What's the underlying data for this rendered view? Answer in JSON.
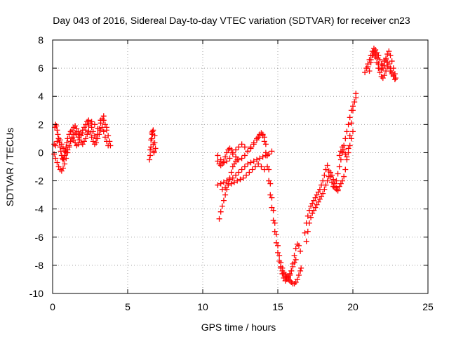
{
  "chart_data": {
    "type": "scatter",
    "title": "Day 043 of 2016, Sidereal Day-to-day VTEC variation (SDTVAR) for receiver cn23",
    "xlabel": "GPS time / hours",
    "ylabel": "SDTVAR / TECUs",
    "xlim": [
      0,
      25
    ],
    "ylim": [
      -10,
      8
    ],
    "xticks": [
      0,
      5,
      10,
      15,
      20,
      25
    ],
    "yticks": [
      -10,
      -8,
      -6,
      -4,
      -2,
      0,
      2,
      4,
      6,
      8
    ],
    "grid": true,
    "legend": "none",
    "marker": "plus",
    "color": "#ff0000",
    "series": [
      {
        "name": "",
        "x": [
          0.1,
          0.15,
          0.2,
          0.25,
          0.3,
          0.35,
          0.4,
          0.45,
          0.5,
          0.55,
          0.6,
          0.65,
          0.7,
          0.75,
          0.8,
          0.85,
          0.9,
          0.95,
          1.0,
          1.1,
          1.2,
          1.3,
          1.4,
          1.5,
          1.6,
          1.7,
          1.8,
          1.9,
          2.0,
          2.1,
          2.2,
          2.3,
          2.4,
          2.5,
          2.6,
          2.7,
          2.8,
          2.9,
          3.0,
          3.1,
          3.2,
          3.3,
          3.4,
          3.5,
          3.6,
          3.7,
          3.8,
          3.85,
          0.1,
          0.2,
          0.3,
          0.4,
          0.5,
          0.6,
          0.7,
          0.8,
          0.9,
          1.0,
          1.1,
          1.2,
          1.3,
          1.4,
          1.5,
          1.6,
          1.7,
          1.8,
          1.9,
          2.0,
          2.1,
          2.2,
          2.3,
          2.4,
          2.5,
          2.6,
          2.7,
          2.8,
          2.9,
          3.0,
          3.1,
          3.2,
          3.3,
          3.4,
          3.5,
          3.6,
          3.7,
          0.2,
          0.3,
          0.4,
          0.5,
          0.6,
          0.7,
          0.8,
          0.9,
          1.0,
          1.1,
          1.2,
          1.3,
          1.4,
          1.5,
          1.6,
          1.7,
          1.8,
          1.9,
          2.0,
          2.2,
          2.4,
          2.6,
          2.8,
          3.0,
          3.2,
          3.4,
          3.6,
          6.45,
          6.5,
          6.55,
          6.6,
          6.65,
          6.7,
          6.75,
          6.8,
          6.85,
          6.5,
          6.6,
          6.7,
          6.8,
          6.55,
          6.65,
          6.75,
          11.0,
          11.1,
          11.2,
          11.3,
          11.4,
          11.5,
          11.6,
          11.7,
          11.8,
          11.9,
          12.0,
          12.2,
          12.4,
          12.6,
          12.8,
          13.0,
          13.2,
          13.4,
          13.6,
          13.8,
          14.0,
          14.1,
          14.2,
          14.3,
          14.4,
          14.5,
          14.6,
          14.7,
          14.8,
          14.9,
          15.0,
          15.1,
          15.2,
          15.3,
          15.4,
          15.5,
          15.6,
          15.7,
          15.8,
          15.9,
          16.0,
          16.1,
          16.2,
          16.3,
          16.4,
          16.5,
          11.0,
          11.2,
          11.4,
          11.6,
          11.8,
          12.0,
          12.2,
          12.4,
          12.6,
          12.8,
          13.0,
          13.2,
          13.4,
          13.6,
          13.7,
          13.8,
          13.9,
          14.0,
          14.1,
          14.2,
          14.3,
          14.4,
          14.5,
          14.6,
          14.7,
          14.8,
          14.9,
          15.0,
          15.1,
          15.2,
          15.3,
          15.4,
          15.5,
          15.6,
          15.7,
          15.8,
          15.9,
          16.0,
          16.1,
          16.2,
          11.0,
          11.2,
          11.4,
          11.6,
          11.8,
          12.0,
          12.2,
          12.4,
          12.6,
          12.8,
          13.0,
          13.2,
          13.4,
          13.6,
          13.8,
          14.0,
          14.2,
          14.4,
          14.6,
          11.1,
          11.2,
          11.3,
          11.4,
          11.5,
          11.6,
          11.7,
          11.8,
          11.9,
          12.0,
          12.1,
          12.2,
          12.3,
          11.3,
          11.5,
          11.7,
          11.9,
          12.1,
          12.3,
          12.5,
          12.7,
          12.9,
          13.1,
          13.3,
          13.5,
          13.7,
          13.9,
          14.1,
          15.2,
          15.3,
          15.4,
          15.5,
          15.6,
          15.7,
          15.8,
          15.9,
          16.0,
          16.1,
          16.2,
          16.3,
          16.4,
          16.5,
          16.55,
          16.8,
          16.9,
          17.0,
          17.1,
          17.2,
          17.3,
          17.4,
          17.5,
          17.6,
          17.7,
          17.8,
          17.9,
          18.0,
          18.1,
          18.2,
          18.3,
          18.4,
          18.5,
          18.6,
          18.7,
          18.8,
          18.9,
          19.0,
          19.1,
          19.2,
          19.3,
          19.4,
          19.5,
          19.6,
          19.7,
          19.8,
          19.9,
          20.0,
          20.1,
          20.2,
          16.9,
          17.0,
          17.1,
          17.2,
          17.3,
          17.4,
          17.5,
          17.6,
          17.7,
          17.8,
          17.9,
          18.0,
          18.1,
          18.2,
          18.3,
          18.4,
          18.5,
          18.6,
          18.7,
          18.8,
          18.9,
          19.0,
          18.7,
          18.8,
          18.9,
          19.0,
          19.1,
          19.2,
          19.3,
          19.4,
          19.5,
          19.6,
          19.7,
          19.8,
          19.9,
          20.0,
          20.1,
          20.2,
          19.1,
          19.2,
          19.3,
          19.4,
          19.5,
          19.6,
          19.7,
          19.8,
          19.9,
          20.0,
          20.8,
          20.9,
          21.0,
          21.1,
          21.2,
          21.3,
          21.4,
          21.5,
          21.6,
          21.7,
          21.8,
          21.9,
          22.0,
          22.1,
          22.2,
          22.3,
          22.4,
          22.5,
          22.6,
          22.7,
          22.8,
          22.85,
          21.0,
          21.1,
          21.2,
          21.3,
          21.4,
          21.5,
          21.6,
          21.7,
          21.8,
          21.9,
          22.0,
          22.1,
          22.2,
          22.3,
          22.4,
          22.5,
          22.6,
          22.7,
          22.8,
          21.2,
          21.3,
          21.4,
          21.5,
          21.6,
          21.7,
          21.8,
          21.9,
          22.0,
          22.1,
          22.2,
          22.3,
          22.4,
          22.5,
          22.6,
          22.7
        ],
        "y": [
          0.6,
          1.8,
          2.0,
          1.9,
          1.6,
          1.3,
          1.0,
          0.7,
          0.4,
          0.1,
          -0.2,
          -0.4,
          -0.5,
          -0.4,
          -0.2,
          0.1,
          0.4,
          0.7,
          1.0,
          1.3,
          1.5,
          1.6,
          1.8,
          1.9,
          1.7,
          1.5,
          1.3,
          1.4,
          1.6,
          1.8,
          2.0,
          2.2,
          2.3,
          2.1,
          1.8,
          1.5,
          1.2,
          1.0,
          1.3,
          1.7,
          2.1,
          2.4,
          2.3,
          2.0,
          1.6,
          1.2,
          0.8,
          0.5,
          -0.1,
          -0.4,
          -0.7,
          -1.0,
          -1.2,
          -1.3,
          -1.1,
          -0.8,
          -0.4,
          0.0,
          0.4,
          0.8,
          1.1,
          1.3,
          1.4,
          1.3,
          1.1,
          0.9,
          0.7,
          0.6,
          0.8,
          1.0,
          1.3,
          1.5,
          1.4,
          1.1,
          0.8,
          0.6,
          0.7,
          1.0,
          1.3,
          1.6,
          1.8,
          1.5,
          1.1,
          0.8,
          0.5,
          0.5,
          0.8,
          1.0,
          0.9,
          0.6,
          0.3,
          0.1,
          0.0,
          0.2,
          0.5,
          0.8,
          1.0,
          0.9,
          0.7,
          0.5,
          0.6,
          0.9,
          1.2,
          1.4,
          1.6,
          1.9,
          2.2,
          2.0,
          1.7,
          2.3,
          2.6,
          1.8,
          -0.5,
          0.2,
          0.9,
          1.4,
          1.5,
          0.6,
          0.0,
          1.2,
          0.3,
          -0.2,
          1.0,
          1.6,
          0.7,
          0.4,
          1.3,
          0.1,
          -0.6,
          -0.8,
          -0.9,
          -0.8,
          -0.6,
          -0.3,
          0.0,
          0.2,
          0.3,
          0.2,
          0.0,
          -0.3,
          -0.5,
          -0.4,
          -0.2,
          0.1,
          0.4,
          0.7,
          1.0,
          1.2,
          1.3,
          1.1,
          0.6,
          -0.2,
          -1.2,
          -2.2,
          -3.2,
          -4.1,
          -5.0,
          -5.8,
          -6.6,
          -7.3,
          -7.8,
          -8.2,
          -8.5,
          -8.7,
          -8.8,
          -8.9,
          -8.7,
          -8.4,
          -7.9,
          -7.3,
          -6.8,
          -6.5,
          -6.6,
          -7.0,
          -0.2,
          -0.5,
          -0.7,
          -0.6,
          -0.4,
          -0.1,
          0.2,
          0.4,
          0.6,
          0.4,
          0.1,
          0.3,
          0.6,
          0.9,
          1.1,
          1.3,
          1.4,
          1.2,
          0.8,
          0.0,
          -1.0,
          -2.0,
          -3.0,
          -3.9,
          -4.8,
          -5.6,
          -6.4,
          -7.1,
          -7.7,
          -8.2,
          -8.6,
          -8.9,
          -9.1,
          -9.0,
          -8.8,
          -8.6,
          -8.4,
          -8.1,
          -7.8,
          -7.6,
          -2.3,
          -2.2,
          -2.1,
          -2.0,
          -1.9,
          -1.8,
          -1.6,
          -1.4,
          -1.2,
          -1.0,
          -0.8,
          -0.7,
          -0.6,
          -0.5,
          -0.4,
          -0.3,
          -0.2,
          -0.1,
          0.1,
          -4.7,
          -4.2,
          -3.8,
          -3.4,
          -3.0,
          -2.6,
          -2.2,
          -1.8,
          -1.4,
          -1.0,
          -0.8,
          -0.6,
          -0.5,
          -2.6,
          -2.5,
          -2.3,
          -2.2,
          -2.1,
          -2.0,
          -1.9,
          -1.8,
          -1.6,
          -1.4,
          -1.2,
          -1.0,
          -0.8,
          -1.0,
          -1.2,
          -8.1,
          -8.4,
          -8.6,
          -8.8,
          -8.9,
          -9.0,
          -9.1,
          -9.2,
          -9.3,
          -9.3,
          -9.2,
          -9.0,
          -8.7,
          -8.4,
          -8.2,
          -5.7,
          -5.0,
          -4.5,
          -4.1,
          -3.8,
          -3.6,
          -3.4,
          -3.2,
          -3.0,
          -2.8,
          -2.6,
          -2.3,
          -2.0,
          -1.6,
          -1.2,
          -0.9,
          -1.3,
          -1.7,
          -2.1,
          -2.4,
          -2.5,
          -2.6,
          -2.6,
          -2.4,
          -2.2,
          -2.0,
          -1.7,
          -1.2,
          -0.5,
          0.3,
          1.2,
          2.1,
          3.0,
          3.6,
          4.2,
          -6.3,
          -5.6,
          -5.0,
          -4.6,
          -4.3,
          -4.1,
          -3.9,
          -3.7,
          -3.5,
          -3.3,
          -3.1,
          -2.9,
          -2.6,
          -2.3,
          -2.0,
          -1.7,
          -1.4,
          -1.6,
          -1.9,
          -2.2,
          -2.5,
          -2.7,
          -2.4,
          -2.2,
          -2.0,
          -1.5,
          -1.0,
          -0.5,
          0.0,
          0.5,
          1.0,
          1.5,
          2.0,
          2.5,
          3.0,
          3.3,
          3.6,
          3.9,
          -0.2,
          0.1,
          0.4,
          0.2,
          -0.1,
          -0.3,
          0.0,
          0.5,
          1.0,
          1.5,
          5.7,
          6.0,
          6.3,
          6.6,
          6.9,
          7.2,
          7.4,
          7.3,
          7.1,
          6.9,
          6.6,
          6.3,
          6.0,
          6.2,
          6.6,
          7.0,
          7.2,
          6.9,
          6.5,
          6.0,
          5.6,
          5.3,
          6.1,
          5.8,
          6.4,
          6.9,
          7.1,
          6.8,
          6.4,
          6.0,
          5.7,
          5.4,
          5.3,
          5.5,
          5.8,
          6.1,
          6.3,
          6.0,
          5.7,
          5.5,
          5.2,
          6.6,
          6.9,
          7.2,
          7.0,
          6.7,
          6.3,
          6.0,
          5.9,
          6.2,
          6.5,
          6.7,
          6.4,
          6.1,
          5.8,
          5.6,
          5.4
        ]
      }
    ]
  }
}
